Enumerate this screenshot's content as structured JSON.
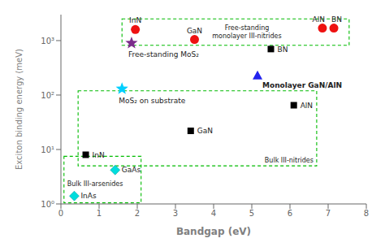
{
  "chart_data": {
    "type": "scatter",
    "xlabel": "Bandgap (eV)",
    "ylabel": "Exciton binding energy (meV)",
    "xlim": [
      0,
      8
    ],
    "xticks": [
      0,
      1,
      2,
      3,
      4,
      5,
      6,
      7,
      8
    ],
    "ylim": [
      1,
      3000
    ],
    "yticks": [
      {
        "value": 1,
        "label": "10⁰"
      },
      {
        "value": 10,
        "label": "10¹"
      },
      {
        "value": 100,
        "label": "10²"
      },
      {
        "value": 1000,
        "label": "10³"
      }
    ],
    "log": "y",
    "grid": false,
    "series": [
      {
        "marker": "square",
        "color": "#000000",
        "x": [
          0.65,
          3.4,
          6.1,
          5.5
        ],
        "values": [
          8,
          22,
          65,
          700
        ],
        "labels": [
          "InN",
          "GaN",
          "AlN",
          "BN"
        ]
      },
      {
        "marker": "diamond",
        "color": "#00DDDD",
        "x": [
          1.42,
          0.35
        ],
        "values": [
          4.2,
          1.4
        ],
        "labels": [
          "GaAs",
          "InAs"
        ]
      },
      {
        "marker": "circle",
        "color": "#EE1111",
        "x": [
          1.95,
          3.5,
          6.85,
          7.15
        ],
        "values": [
          1600,
          1050,
          1700,
          1700
        ],
        "labels": [
          "InN",
          "GaN",
          "AlN",
          "BN"
        ]
      },
      {
        "marker": "triangle",
        "color": "#2222EE",
        "x": [
          5.15
        ],
        "values": [
          230
        ],
        "labels": [
          "Monolayer GaN/AlN"
        ]
      },
      {
        "marker": "star",
        "color": "#7B2D8B",
        "x": [
          1.85
        ],
        "values": [
          900
        ],
        "labels": [
          "Free-standing MoS₂"
        ]
      },
      {
        "marker": "star",
        "color": "#00CFFF",
        "x": [
          1.6
        ],
        "values": [
          130
        ],
        "labels": [
          "MoS₂ on substrate"
        ]
      }
    ],
    "regions": [
      {
        "x0": 1.6,
        "x1": 7.55,
        "y0": 820,
        "y1": 2500,
        "labels": [
          "Free-standing",
          "monolayer III-nitrides"
        ],
        "color": "#00bb00",
        "line_style": "dashed"
      },
      {
        "x0": 0.45,
        "x1": 6.7,
        "y0": 5.0,
        "y1": 120,
        "labels": [
          "Bulk III-nitrides"
        ],
        "color": "#00bb00",
        "line_style": "dashed"
      },
      {
        "x0": 0.08,
        "x1": 2.1,
        "y0": 1.05,
        "y1": 7.5,
        "labels": [
          "Bulk III-arsenides"
        ],
        "color": "#00bb00",
        "line_style": "dashed"
      }
    ]
  }
}
